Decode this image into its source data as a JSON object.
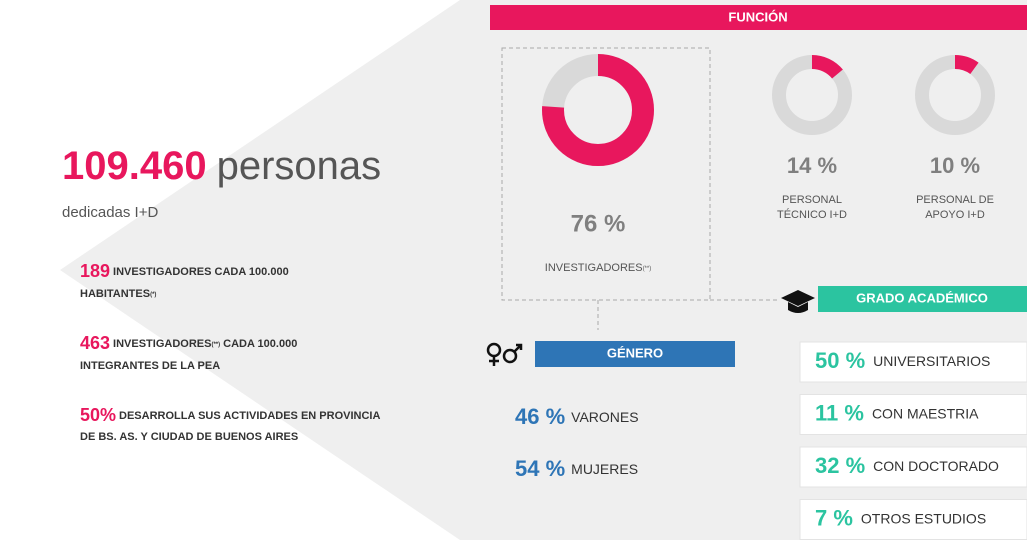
{
  "headline": {
    "number": "109.460",
    "unit": "personas",
    "caption": "dedicadas I+D"
  },
  "stats": [
    {
      "number": "189",
      "line1": "INVESTIGADORES CADA 100.000",
      "line2": "HABITANTES",
      "note": "(*)"
    },
    {
      "number": "463",
      "line1a": "INVESTIGADORES",
      "note": "(**)",
      "line1b": "CADA 100.000",
      "line2": "INTEGRANTES DE LA PEA"
    },
    {
      "number": "50%",
      "line1": "DESARROLLA SUS ACTIVIDADES EN PROVINCIA",
      "line2": "DE BS. AS. Y CIUDAD DE BUENOS AIRES"
    }
  ],
  "funcion": {
    "title": "FUNCIÓN",
    "items": [
      {
        "value": 76,
        "label": "76 %",
        "name": [
          "INVESTIGADORES"
        ],
        "note": "(**)"
      },
      {
        "value": 14,
        "label": "14 %",
        "name": [
          "PERSONAL",
          "TÉCNICO I+D"
        ]
      },
      {
        "value": 10,
        "label": "10 %",
        "name": [
          "PERSONAL DE",
          "APOYO I+D"
        ]
      }
    ]
  },
  "genero": {
    "title": "GÉNERO",
    "items": [
      {
        "value": 46,
        "label": "46 %",
        "name": "VARONES"
      },
      {
        "value": 54,
        "label": "54 %",
        "name": "MUJERES"
      }
    ]
  },
  "grado": {
    "title": "GRADO ACADÉMICO",
    "items": [
      {
        "value": 50,
        "label": "50 %",
        "name": "UNIVERSITARIOS"
      },
      {
        "value": 11,
        "label": "11 %",
        "name": "CON MAESTRIA"
      },
      {
        "value": 32,
        "label": "32 %",
        "name": "CON DOCTORADO"
      },
      {
        "value": 7,
        "label": "7 %",
        "name": "OTROS ESTUDIOS"
      }
    ]
  }
}
